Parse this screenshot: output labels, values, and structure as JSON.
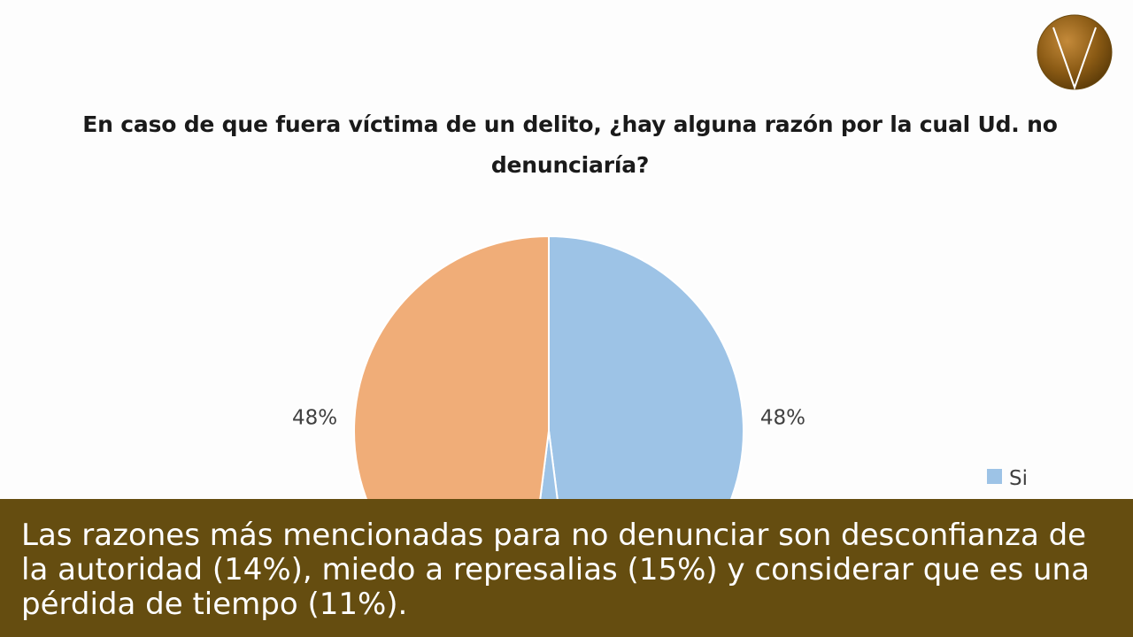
{
  "logo": {
    "icon": "v-brand-logo-icon",
    "color": "#8a5a14"
  },
  "chart_data": {
    "type": "pie",
    "title": "En caso de que fuera víctima de un delito, ¿hay alguna razón por la cual Ud. no denunciaría?",
    "start_angle_deg": 0,
    "slices": [
      {
        "name": "Si",
        "value": 48,
        "label": "48%",
        "color": "#9dc3e6"
      },
      {
        "name": "",
        "value": 4,
        "label": "",
        "color": "#9dc3e6"
      },
      {
        "name": "",
        "value": 48,
        "label": "48%",
        "color": "#f0ad78"
      }
    ],
    "legend": {
      "position": "right",
      "items": [
        {
          "name": "Si",
          "color": "#9dc3e6"
        }
      ]
    }
  },
  "caption": {
    "text": "Las razones más mencionadas para no denunciar son desconfianza de la autoridad (14%), miedo a represalias (15%) y considerar que es una pérdida de tiempo (11%).",
    "background": "#654d10"
  }
}
